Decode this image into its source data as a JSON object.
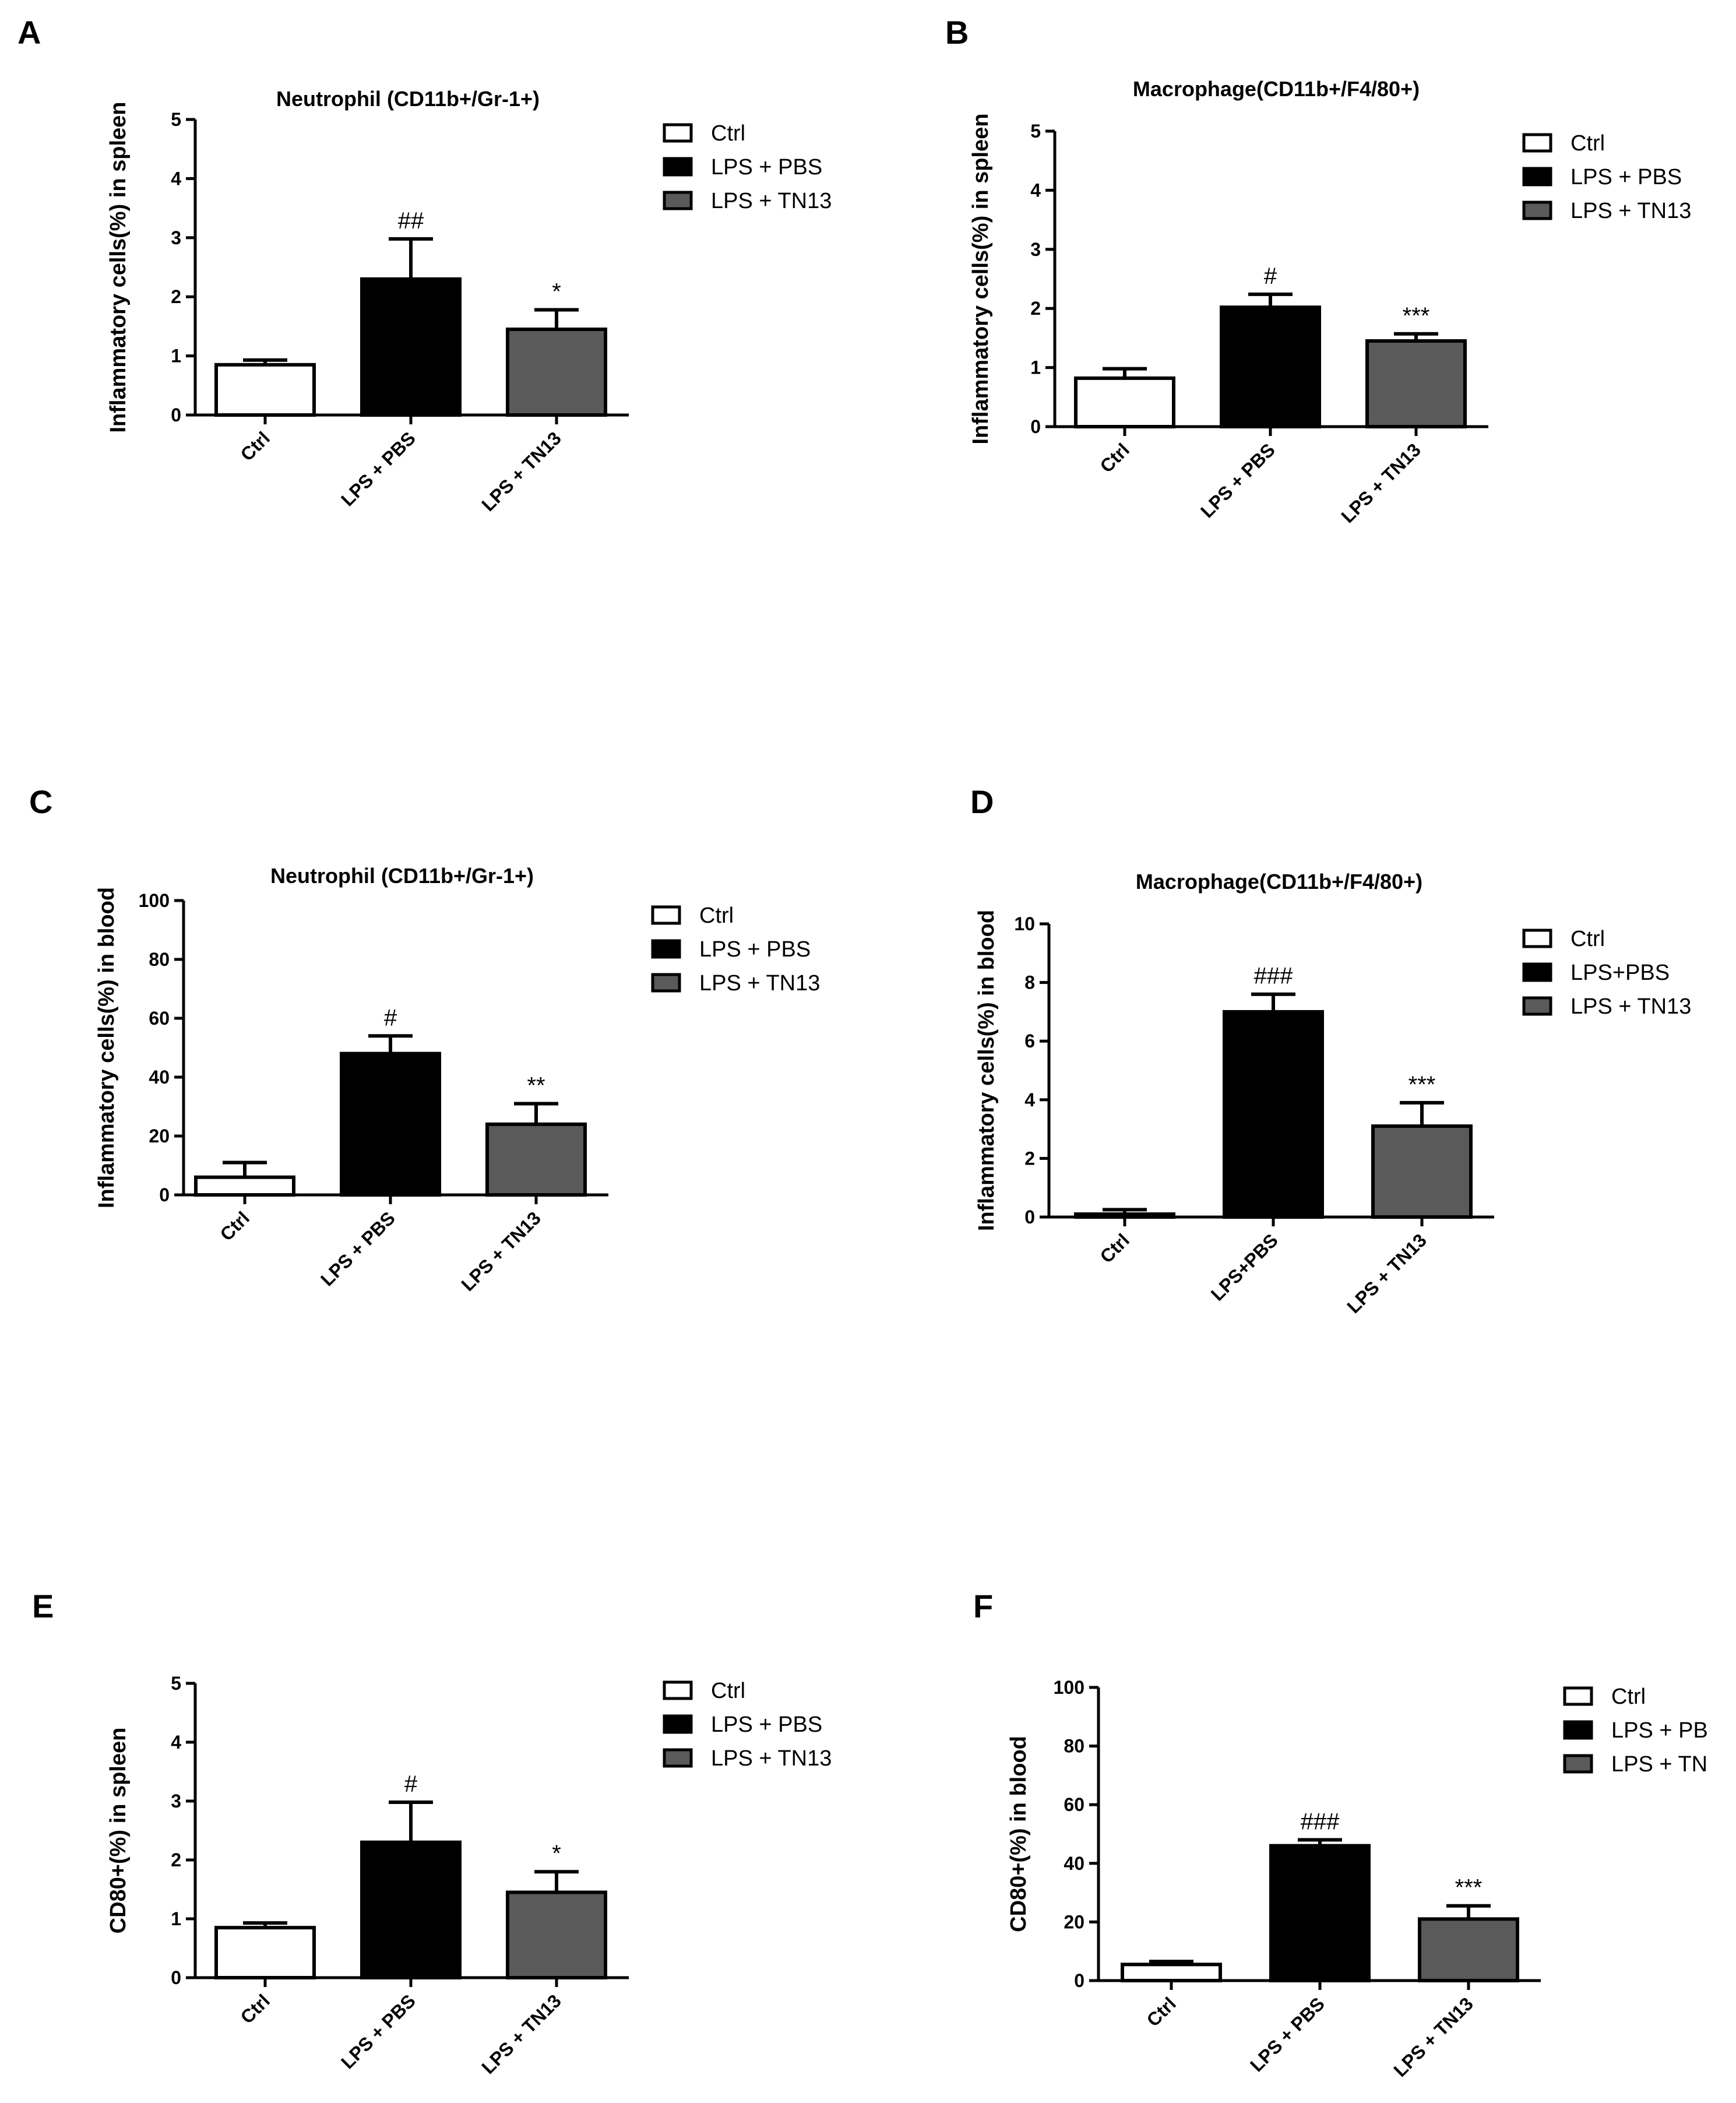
{
  "colors": {
    "ctrl": "#ffffff",
    "pbs": "#000000",
    "tn13": "#5a5a5a",
    "stroke": "#000000"
  },
  "chart_data": [
    {
      "panel": "A",
      "type": "bar",
      "title": "Neutrophil (CD11b+/Gr-1+)",
      "ylabel": "Inflammatory cells(%) in spleen",
      "ylim": [
        0,
        5
      ],
      "yticks": [
        0,
        1,
        2,
        3,
        4,
        5
      ],
      "categories": [
        "Ctrl",
        "LPS + PBS",
        "LPS + TN13"
      ],
      "values": [
        0.85,
        2.3,
        1.45
      ],
      "errors": [
        0.08,
        0.68,
        0.33
      ],
      "annotations": [
        "",
        "##",
        "*"
      ],
      "legend": [
        "Ctrl",
        "LPS + PBS",
        "LPS + TN13"
      ]
    },
    {
      "panel": "B",
      "type": "bar",
      "title": "Macrophage(CD11b+/F4/80+)",
      "ylabel": "Inflammatory cells(%) in spleen",
      "ylim": [
        0,
        5
      ],
      "yticks": [
        0,
        1,
        2,
        3,
        4,
        5
      ],
      "categories": [
        "Ctrl",
        "LPS + PBS",
        "LPS + TN13"
      ],
      "values": [
        0.82,
        2.02,
        1.45
      ],
      "errors": [
        0.16,
        0.22,
        0.12
      ],
      "annotations": [
        "",
        "#",
        "***"
      ],
      "legend": [
        "Ctrl",
        "LPS + PBS",
        "LPS + TN13"
      ]
    },
    {
      "panel": "C",
      "type": "bar",
      "title": "Neutrophil (CD11b+/Gr-1+)",
      "ylabel": "Inflammatory cells(%) in blood",
      "ylim": [
        0,
        100
      ],
      "yticks": [
        0,
        20,
        40,
        60,
        80,
        100
      ],
      "categories": [
        "Ctrl",
        "LPS + PBS",
        "LPS + TN13"
      ],
      "values": [
        6,
        48,
        24
      ],
      "errors": [
        5,
        6,
        7
      ],
      "annotations": [
        "",
        "#",
        "**"
      ],
      "legend": [
        "Ctrl",
        "LPS + PBS",
        "LPS + TN13"
      ]
    },
    {
      "panel": "D",
      "type": "bar",
      "title": "Macrophage(CD11b+/F4/80+)",
      "ylabel": "Inflammatory cells(%) in blood",
      "ylim": [
        0,
        10
      ],
      "yticks": [
        0,
        2,
        4,
        6,
        8,
        10
      ],
      "categories": [
        "Ctrl",
        "LPS+PBS",
        "LPS + TN13"
      ],
      "values": [
        0.1,
        7.0,
        3.1
      ],
      "errors": [
        0.15,
        0.6,
        0.8
      ],
      "annotations": [
        "",
        "###",
        "***"
      ],
      "legend": [
        "Ctrl",
        "LPS+PBS",
        "LPS + TN13"
      ]
    },
    {
      "panel": "E",
      "type": "bar",
      "title": "",
      "ylabel": "CD80+(%) in spleen",
      "ylim": [
        0,
        5
      ],
      "yticks": [
        0,
        1,
        2,
        3,
        4,
        5
      ],
      "categories": [
        "Ctrl",
        "LPS + PBS",
        "LPS + TN13"
      ],
      "values": [
        0.85,
        2.3,
        1.45
      ],
      "errors": [
        0.08,
        0.68,
        0.35
      ],
      "annotations": [
        "",
        "#",
        "*"
      ],
      "legend": [
        "Ctrl",
        "LPS + PBS",
        "LPS + TN13"
      ]
    },
    {
      "panel": "F",
      "type": "bar",
      "title": "",
      "ylabel": "CD80+(%) in blood",
      "ylim": [
        0,
        100
      ],
      "yticks": [
        0,
        20,
        40,
        60,
        80,
        100
      ],
      "categories": [
        "Ctrl",
        "LPS + PBS",
        "LPS + TN13"
      ],
      "values": [
        5.5,
        46,
        21
      ],
      "errors": [
        1,
        2,
        4.5
      ],
      "annotations": [
        "",
        "###",
        "***"
      ],
      "legend": [
        "Ctrl",
        "LPS + PB",
        "LPS + TN"
      ]
    }
  ]
}
